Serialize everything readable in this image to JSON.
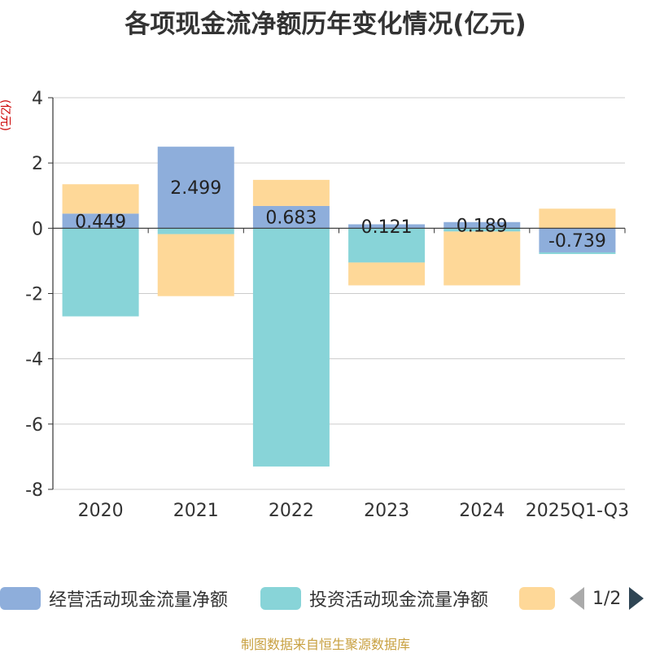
{
  "title": "各项现金流净额历年变化情况(亿元)",
  "unit_label": "(亿元)",
  "source": "制图数据来自恒生聚源数据库",
  "legend": {
    "items": [
      {
        "name": "经营活动现金流量净额",
        "color": "#8eaedb"
      },
      {
        "name": "投资活动现金流量净额",
        "color": "#88d4d8"
      },
      {
        "name": "",
        "color": "#fed898"
      }
    ],
    "page": "1/2"
  },
  "chart_data": {
    "type": "bar",
    "stacked": true,
    "categories": [
      "2020",
      "2021",
      "2022",
      "2023",
      "2024",
      "2025Q1-Q3"
    ],
    "ylim": [
      -8,
      4
    ],
    "yticks": [
      4,
      2,
      0,
      -2,
      -4,
      -6,
      -8
    ],
    "ylabel": "(亿元)",
    "series": [
      {
        "name": "经营活动现金流量净额",
        "color": "#8eaedb",
        "values": [
          0.449,
          2.499,
          0.683,
          0.121,
          0.189,
          -0.739
        ],
        "labels": [
          "0.449",
          "2.499",
          "0.683",
          "0.121",
          "0.189",
          "-0.739"
        ]
      },
      {
        "name": "投资活动现金流量净额",
        "color": "#88d4d8",
        "values": [
          -2.7,
          -0.18,
          -7.3,
          -1.05,
          -0.1,
          -0.05
        ]
      },
      {
        "name": "",
        "color": "#fed898",
        "values": [
          0.9,
          -1.9,
          0.8,
          -0.7,
          -1.65,
          0.6
        ]
      }
    ]
  }
}
